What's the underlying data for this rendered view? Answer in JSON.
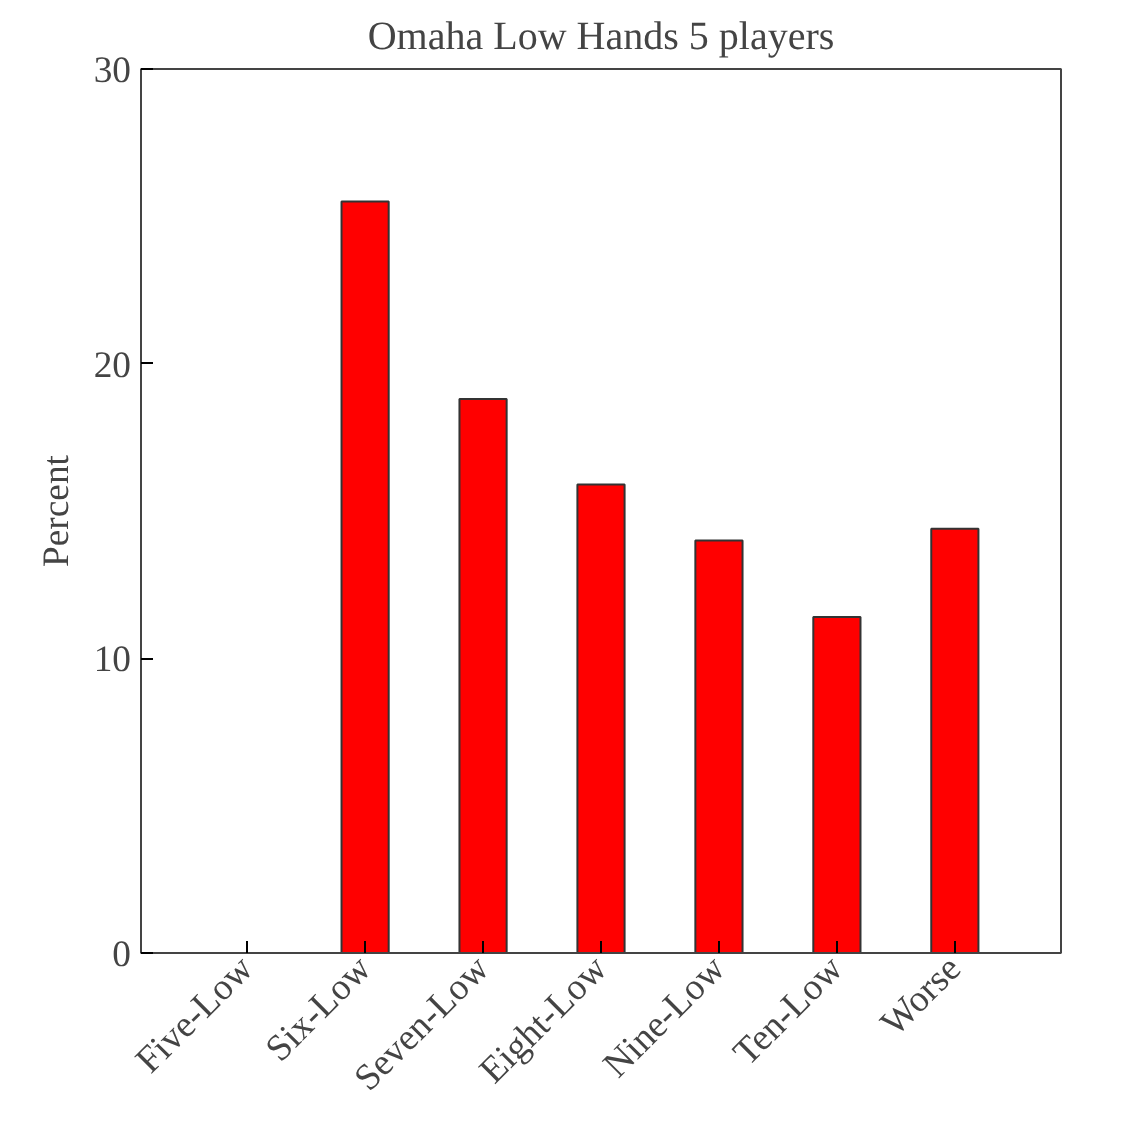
{
  "chart_data": {
    "type": "bar",
    "title": "Omaha Low Hands 5 players",
    "ylabel": "Percent",
    "categories": [
      "Five-Low",
      "Six-Low",
      "Seven-Low",
      "Eight-Low",
      "Nine-Low",
      "Ten-Low",
      "Worse"
    ],
    "values": [
      0,
      25.5,
      18.8,
      15.9,
      14.0,
      11.4,
      14.4
    ],
    "colors": [
      "#333333",
      "#ff0000",
      "#ff0000",
      "#ff0000",
      "#ff0000",
      "#ff0000",
      "#ff0000"
    ],
    "ylim": [
      0,
      30
    ],
    "yticks": [
      0,
      10,
      20,
      30
    ],
    "grid": false
  }
}
